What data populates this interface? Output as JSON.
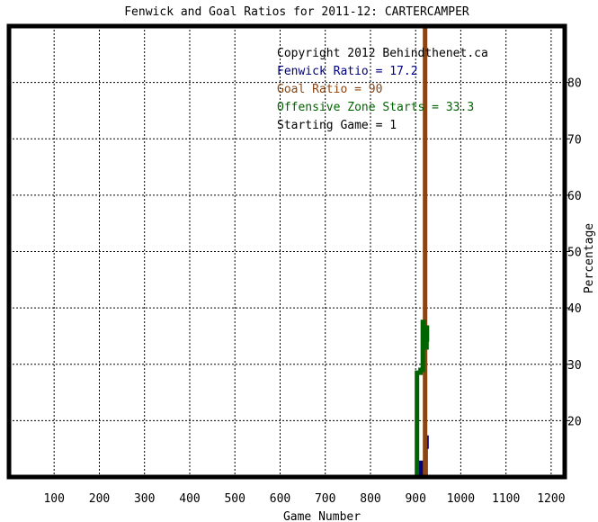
{
  "chart_data": {
    "type": "line",
    "title": "Fenwick and Goal Ratios for 2011-12: CARTERCAMPER",
    "xlabel": "Game Number",
    "ylabel": "Percentage",
    "xlim": [
      0,
      1230
    ],
    "ylim": [
      10,
      90
    ],
    "x_ticks": [
      100,
      200,
      300,
      400,
      500,
      600,
      700,
      800,
      900,
      1000,
      1100,
      1200
    ],
    "y_ticks": [
      20,
      30,
      40,
      50,
      60,
      70,
      80
    ],
    "grid": true,
    "legend_position": "top-right",
    "legend": [
      {
        "text": "Copyright 2012 Behindthenet.ca",
        "color": "#000000"
      },
      {
        "text": "Fenwick Ratio = 17.2",
        "color": "#000080"
      },
      {
        "text": "Goal Ratio = 90",
        "color": "#8b4513"
      },
      {
        "text": "Offensive Zone Starts = 33.3",
        "color": "#006400"
      },
      {
        "text": "Starting Game = 1",
        "color": "#000000"
      }
    ],
    "series": [
      {
        "name": "Fenwick Ratio",
        "color": "#000080",
        "points": [
          [
            909,
            10
          ],
          [
            909,
            12.5
          ],
          [
            913,
            12.5
          ],
          [
            913,
            10
          ],
          [
            915,
            10
          ],
          [
            922,
            10
          ],
          [
            922,
            17
          ],
          [
            924,
            17
          ],
          [
            924,
            15
          ]
        ]
      },
      {
        "name": "Goal Ratio",
        "color": "#8b4513",
        "points": [
          [
            921,
            10
          ],
          [
            921,
            90
          ]
        ]
      },
      {
        "name": "Offensive Zone Starts",
        "color": "#006400",
        "points": [
          [
            903,
            10
          ],
          [
            903,
            28.5
          ],
          [
            911,
            28.5
          ],
          [
            911,
            29
          ],
          [
            916,
            29
          ],
          [
            916,
            37.5
          ],
          [
            918,
            37.5
          ],
          [
            918,
            33
          ],
          [
            924,
            33
          ],
          [
            924,
            36.5
          ],
          [
            925,
            36.5
          ],
          [
            925,
            34
          ]
        ]
      }
    ]
  }
}
